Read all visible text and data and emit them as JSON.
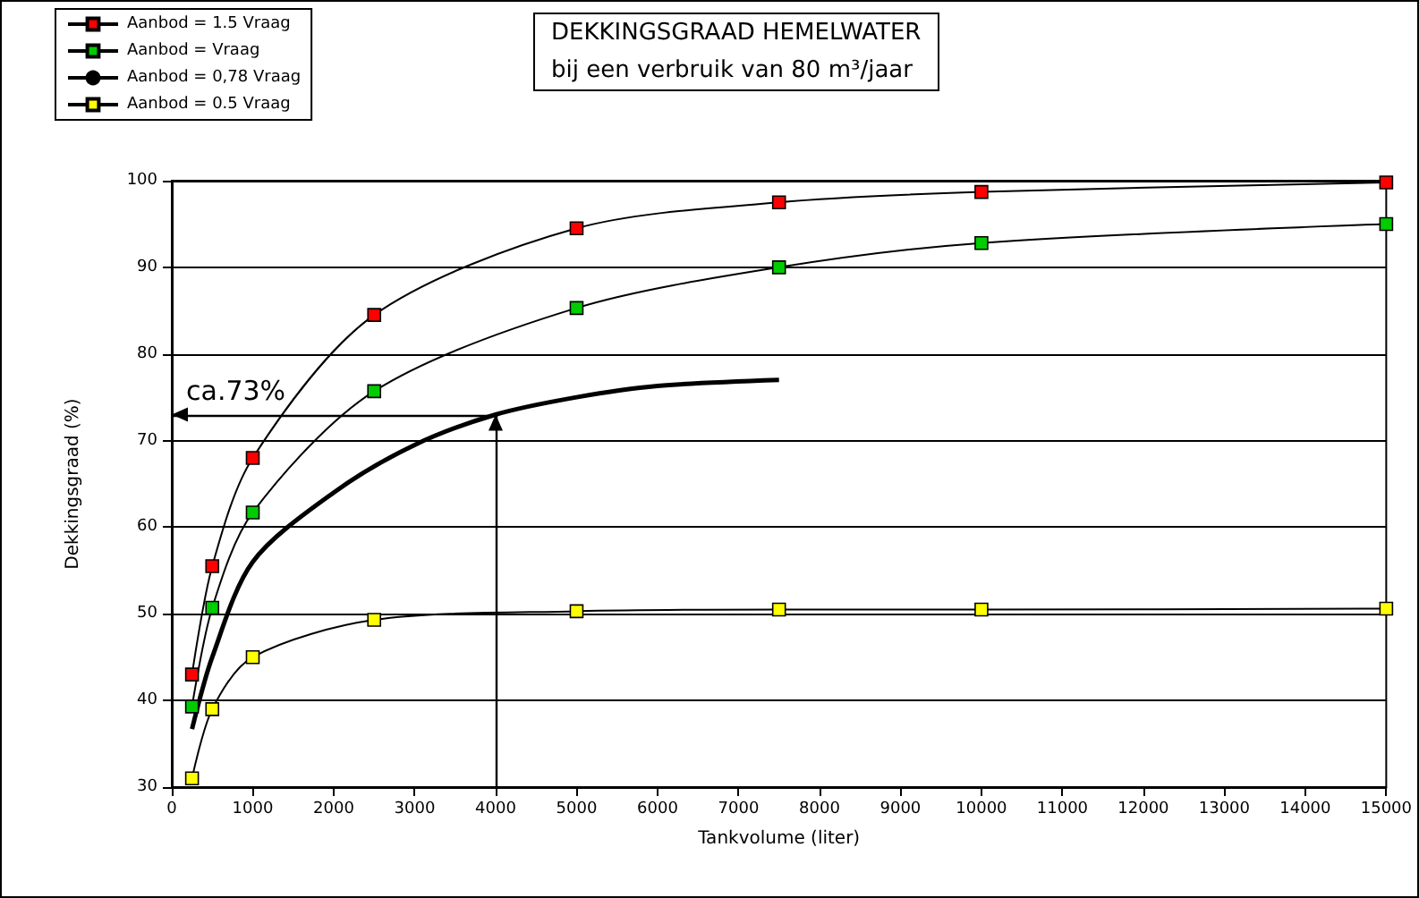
{
  "chart_data": {
    "type": "line",
    "title": "DEKKINGSGRAAD HEMELWATER",
    "subtitle": "bij een verbruik van 80 m³/jaar",
    "xlabel": "Tankvolume (liter)",
    "ylabel": "Dekkingsgraad (%)",
    "series": [
      {
        "name": "Aanbod = 1.5 Vraag",
        "color": "#ff0000",
        "marker": "square",
        "x": [
          250,
          500,
          1000,
          2500,
          5000,
          7500,
          10000,
          15000
        ],
        "values": [
          43,
          55.5,
          68,
          84.5,
          94.5,
          97.5,
          98.7,
          99.8
        ]
      },
      {
        "name": "Aanbod = Vraag",
        "color": "#00cc00",
        "marker": "square",
        "x": [
          250,
          500,
          1000,
          2500,
          5000,
          7500,
          10000,
          15000
        ],
        "values": [
          39.3,
          50.7,
          61.7,
          75.7,
          85.3,
          90,
          92.8,
          95
        ]
      },
      {
        "name": "Aanbod = 0,78 Vraag",
        "color": "#000000",
        "marker": "none",
        "x": [
          250,
          500,
          1000,
          2000,
          3000,
          4000,
          5000,
          6000,
          7500
        ],
        "values": [
          36.7,
          45,
          56,
          64,
          69.5,
          73,
          75,
          76.3,
          77
        ]
      },
      {
        "name": "Aanbod = 0.5 Vraag",
        "color": "#ffff00",
        "marker": "square",
        "x": [
          250,
          500,
          1000,
          2500,
          5000,
          7500,
          10000,
          15000
        ],
        "values": [
          31,
          39,
          45,
          49.3,
          50.3,
          50.5,
          50.5,
          50.6
        ]
      }
    ],
    "ref_lines": [
      {
        "axis": "y",
        "value": 73,
        "label": "ca.73%"
      },
      {
        "axis": "x",
        "value": 4000
      }
    ],
    "xlim": [
      0,
      15000
    ],
    "xticks": [
      0,
      1000,
      2000,
      3000,
      4000,
      5000,
      6000,
      7000,
      8000,
      9000,
      10000,
      11000,
      12000,
      13000,
      14000,
      15000
    ],
    "ylim": [
      30,
      100
    ],
    "yticks": [
      30,
      40,
      50,
      60,
      70,
      80,
      90,
      100
    ],
    "grid": "y",
    "legend": "top left"
  }
}
